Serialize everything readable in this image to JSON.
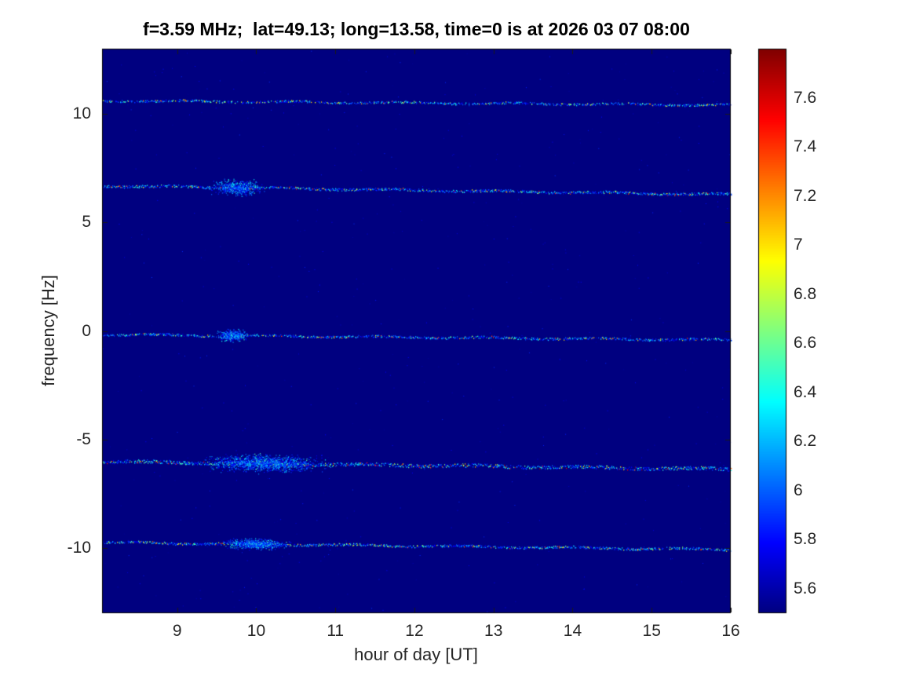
{
  "chart_data": {
    "type": "heatmap",
    "title": "f=3.59 MHz;  lat=49.13; long=13.58, time=0 is at 2026 03 07 08:00",
    "xlabel": "hour of day [UT]",
    "ylabel": "frequency [Hz]",
    "xlim": [
      8.05,
      16
    ],
    "ylim": [
      -13,
      13
    ],
    "xticks": [
      9,
      10,
      11,
      12,
      13,
      14,
      15,
      16
    ],
    "yticks": [
      -10,
      -5,
      0,
      5,
      10
    ],
    "grid": false,
    "background_value": 5.5,
    "colorbar": {
      "position": "right",
      "colormap": "jet",
      "min": 5.5,
      "max": 7.8,
      "ticks": [
        5.6,
        5.8,
        6,
        6.2,
        6.4,
        6.6,
        6.8,
        7,
        7.2,
        7.4,
        7.6
      ]
    },
    "spectral_lines": [
      {
        "y_left": 10.62,
        "y_right": 10.42,
        "strength": 0.55,
        "density": 0.72,
        "thickness": 1.1,
        "blobs": []
      },
      {
        "y_left": 6.7,
        "y_right": 6.3,
        "strength": 0.75,
        "density": 0.85,
        "thickness": 1.3,
        "blobs": [
          {
            "x": 9.75,
            "width": 0.4,
            "spread": 0.45
          }
        ]
      },
      {
        "y_left": -0.15,
        "y_right": -0.4,
        "strength": 0.65,
        "density": 0.8,
        "thickness": 1.2,
        "blobs": [
          {
            "x": 9.7,
            "width": 0.25,
            "spread": 0.35
          }
        ]
      },
      {
        "y_left": -6.0,
        "y_right": -6.35,
        "strength": 1.0,
        "density": 0.95,
        "thickness": 1.8,
        "blobs": [
          {
            "x": 10.1,
            "width": 0.9,
            "spread": 0.5
          }
        ]
      },
      {
        "y_left": -9.72,
        "y_right": -10.05,
        "strength": 0.65,
        "density": 0.8,
        "thickness": 1.2,
        "blobs": [
          {
            "x": 10.0,
            "width": 0.5,
            "spread": 0.3
          }
        ]
      }
    ]
  }
}
